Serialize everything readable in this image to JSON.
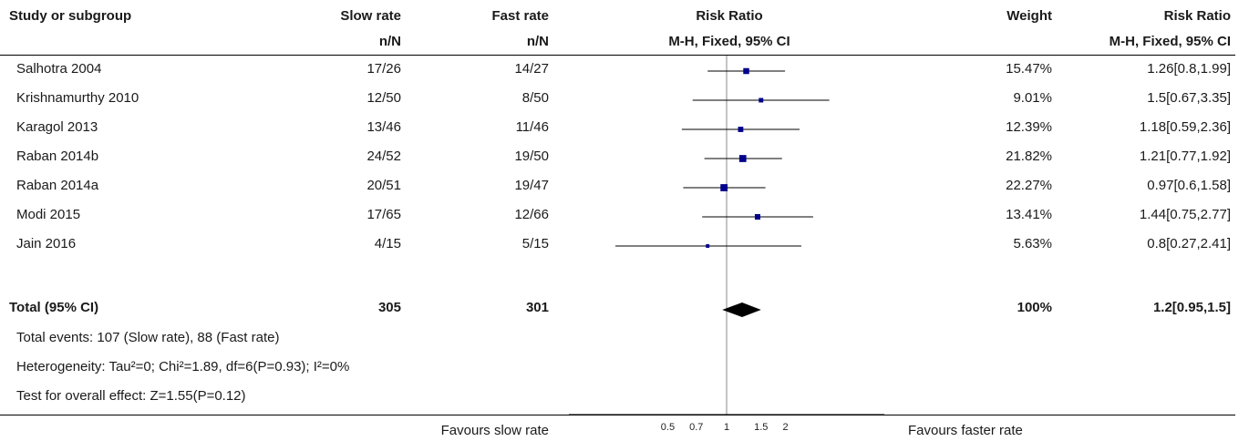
{
  "header": {
    "study": "Study or subgroup",
    "slow": "Slow rate",
    "fast": "Fast rate",
    "rr": "Risk Ratio",
    "weight": "Weight",
    "rr2": "Risk Ratio",
    "slow_sub": "n/N",
    "fast_sub": "n/N",
    "rr_sub": "M-H, Fixed, 95% CI",
    "rr2_sub": "M-H, Fixed, 95% CI"
  },
  "studies": [
    {
      "name": "Salhotra 2004",
      "slow": "17/26",
      "fast": "14/27",
      "weight": "15.47%",
      "ci_text": "1.26[0.8,1.99]"
    },
    {
      "name": "Krishnamurthy 2010",
      "slow": "12/50",
      "fast": "8/50",
      "weight": "9.01%",
      "ci_text": "1.5[0.67,3.35]"
    },
    {
      "name": "Karagol 2013",
      "slow": "13/46",
      "fast": "11/46",
      "weight": "12.39%",
      "ci_text": "1.18[0.59,2.36]"
    },
    {
      "name": "Raban 2014b",
      "slow": "24/52",
      "fast": "19/50",
      "weight": "21.82%",
      "ci_text": "1.21[0.77,1.92]"
    },
    {
      "name": "Raban 2014a",
      "slow": "20/51",
      "fast": "19/47",
      "weight": "22.27%",
      "ci_text": "0.97[0.6,1.58]"
    },
    {
      "name": "Modi 2015",
      "slow": "17/65",
      "fast": "12/66",
      "weight": "13.41%",
      "ci_text": "1.44[0.75,2.77]"
    },
    {
      "name": "Jain 2016",
      "slow": "4/15",
      "fast": "5/15",
      "weight": "5.63%",
      "ci_text": "0.8[0.27,2.41]"
    }
  ],
  "total": {
    "label": "Total (95% CI)",
    "slow": "305",
    "fast": "301",
    "weight": "100%",
    "ci_text": "1.2[0.95,1.5]"
  },
  "notes": {
    "events": "Total events: 107 (Slow rate), 88 (Fast rate)",
    "heterogeneity": "Heterogeneity: Tau²=0; Chi²=1.89, df=6(P=0.93); I²=0%",
    "overall": "Test for overall effect: Z=1.55(P=0.12)"
  },
  "footer": {
    "left": "Favours slow rate",
    "right": "Favours faster rate"
  },
  "chart_data": {
    "type": "forest",
    "scale": "log",
    "reference_line": 1,
    "tick_labels": [
      "0.5",
      "0.7",
      "1",
      "1.5",
      "2"
    ],
    "ticks": [
      0.5,
      0.7,
      1,
      1.5,
      2
    ],
    "points": [
      {
        "rr": 1.26,
        "lo": 0.8,
        "hi": 1.99,
        "weight": 15.47
      },
      {
        "rr": 1.5,
        "lo": 0.67,
        "hi": 3.35,
        "weight": 9.01
      },
      {
        "rr": 1.18,
        "lo": 0.59,
        "hi": 2.36,
        "weight": 12.39
      },
      {
        "rr": 1.21,
        "lo": 0.77,
        "hi": 1.92,
        "weight": 21.82
      },
      {
        "rr": 0.97,
        "lo": 0.6,
        "hi": 1.58,
        "weight": 22.27
      },
      {
        "rr": 1.44,
        "lo": 0.75,
        "hi": 2.77,
        "weight": 13.41
      },
      {
        "rr": 0.8,
        "lo": 0.27,
        "hi": 2.41,
        "weight": 5.63
      }
    ],
    "pooled": {
      "rr": 1.2,
      "lo": 0.95,
      "hi": 1.5
    },
    "colors": {
      "marker": "#00008b",
      "line": "#000000",
      "diamond": "#000000",
      "ref": "#888888"
    }
  }
}
